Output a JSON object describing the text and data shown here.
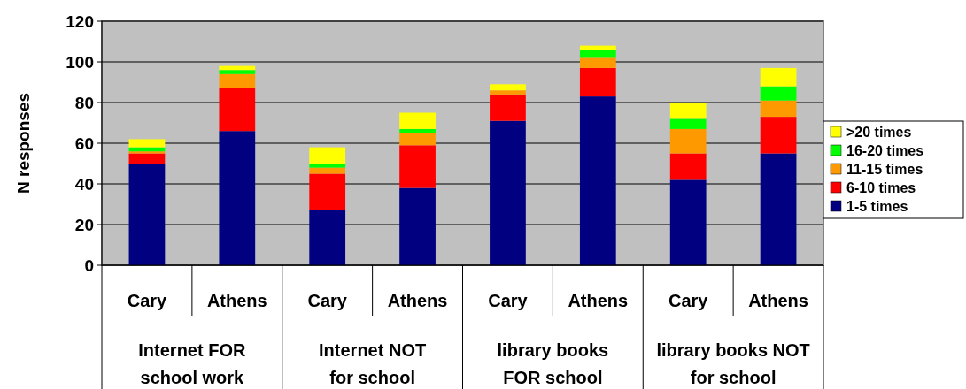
{
  "chart_data": {
    "type": "bar",
    "stacked": true,
    "ylabel": "N  responses",
    "categories": [
      "Cary",
      "Athens",
      "Cary",
      "Athens",
      "Cary",
      "Athens",
      "Cary",
      "Athens"
    ],
    "series": [
      {
        "name": "1-5 times",
        "color": "#000080",
        "values": [
          50,
          66,
          27,
          38,
          71,
          83,
          42,
          55
        ]
      },
      {
        "name": "6-10 times",
        "color": "#ff0000",
        "values": [
          5,
          21,
          18,
          21,
          13,
          14,
          13,
          18
        ]
      },
      {
        "name": "11-15 times",
        "color": "#ff9900",
        "values": [
          1,
          7,
          3,
          6,
          2,
          5,
          12,
          8
        ]
      },
      {
        "name": "16-20 times",
        "color": "#00ff00",
        "values": [
          2,
          2,
          2,
          2,
          0,
          4,
          5,
          7
        ]
      },
      {
        "name": ">20 times",
        "color": "#ffff00",
        "values": [
          4,
          2,
          8,
          8,
          3,
          2,
          8,
          9
        ]
      }
    ],
    "annotations": [
      "Internet FOR school work",
      "Internet NOT for school",
      "library books FOR school",
      "library books NOT for school"
    ],
    "ylim": [
      0,
      120
    ],
    "yticks": [
      0,
      20,
      40,
      60,
      80,
      100,
      120
    ],
    "grid": "y",
    "legend": "right"
  }
}
